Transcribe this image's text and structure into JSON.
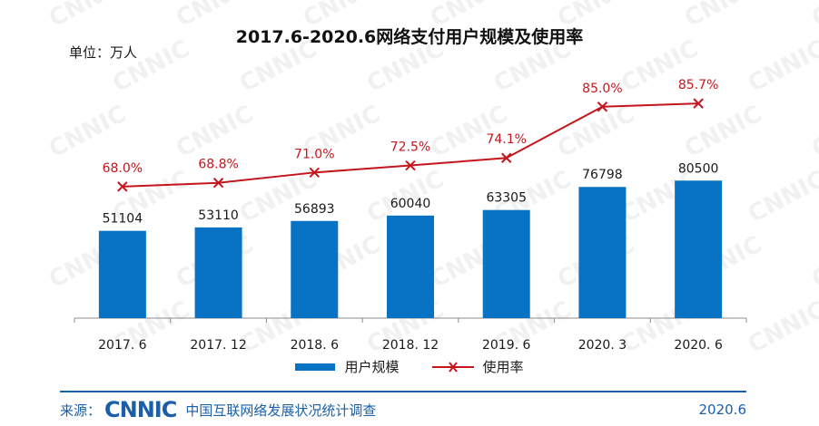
{
  "header": {
    "unit_label": "单位：万人",
    "title": "2017.6-2020.6网络支付用户规模及使用率"
  },
  "watermark": {
    "text": "CNNIC"
  },
  "legend": {
    "bar_label": "用户规模",
    "line_label": "使用率"
  },
  "footer": {
    "source_label": "来源：",
    "logo_text": "CNNIC",
    "source_org": "中国互联网络发展状况统计调查",
    "date": "2020.6"
  },
  "colors": {
    "bar": "#0873c4",
    "line": "#c4161c",
    "footer": "#1a5fa8"
  },
  "chart_data": {
    "type": "bar",
    "categories": [
      "2017. 6",
      "2017. 12",
      "2018. 6",
      "2018. 12",
      "2019. 6",
      "2020. 3",
      "2020. 6"
    ],
    "series": [
      {
        "name": "用户规模",
        "type": "bar",
        "values": [
          51104,
          53110,
          56893,
          60040,
          63305,
          76798,
          80500
        ]
      },
      {
        "name": "使用率",
        "type": "line",
        "values": [
          68.0,
          68.8,
          71.0,
          72.5,
          74.1,
          85.0,
          85.7
        ],
        "labels": [
          "68.0%",
          "68.8%",
          "71.0%",
          "72.5%",
          "74.1%",
          "85.0%",
          "85.7%"
        ]
      }
    ],
    "title": "2017.6-2020.6网络支付用户规模及使用率",
    "ylabel": "单位：万人",
    "ylim": [
      0,
      165000
    ],
    "y2lim": [
      40,
      100
    ],
    "grid": false,
    "legend_position": "bottom"
  }
}
